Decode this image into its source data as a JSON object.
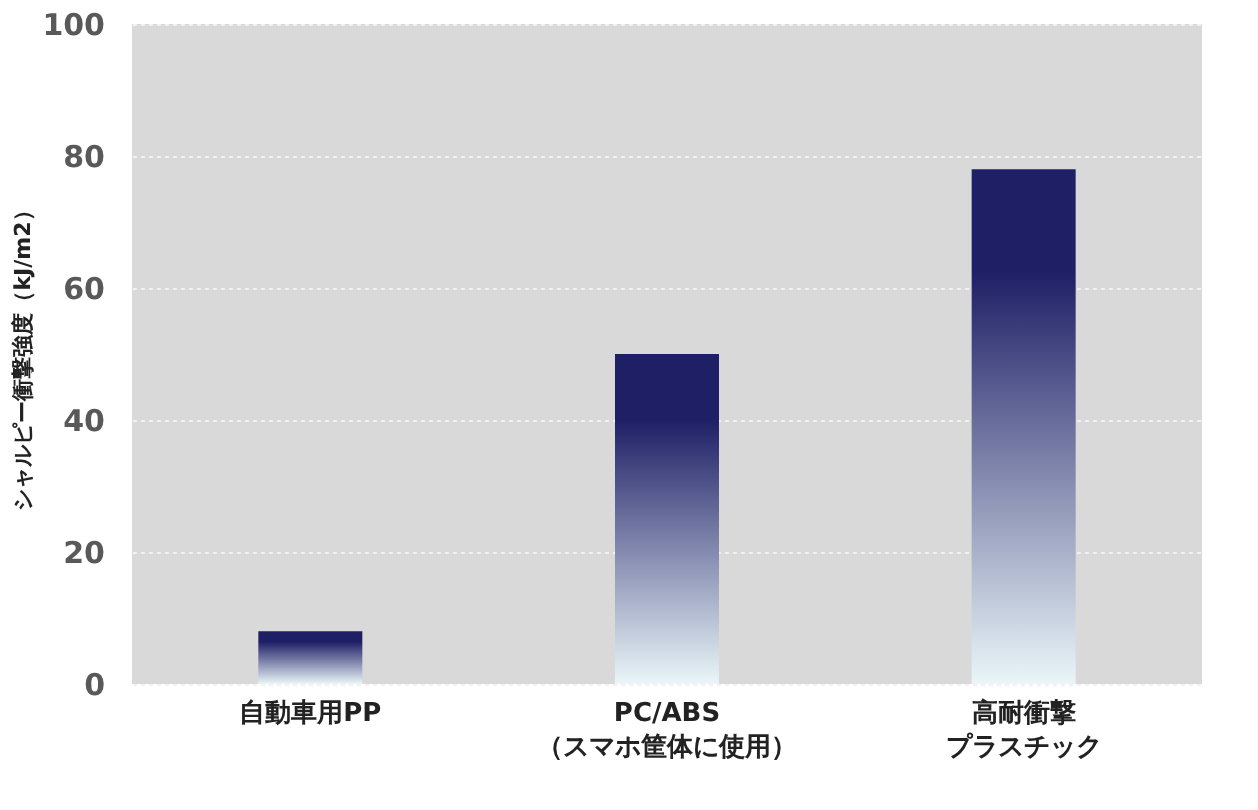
{
  "chart_data": {
    "type": "bar",
    "ylabel": "シャルピー衝撃強度（kJ/m2）",
    "categories": [
      "自動車用PP",
      "PC/ABS（スマホ筐体に使用）",
      "高耐衝撃プラスチック"
    ],
    "values": [
      8,
      50,
      78
    ],
    "color": "#1f1f66",
    "ylim": [
      0,
      100
    ],
    "yticks": [
      0,
      20,
      40,
      60,
      80,
      100
    ],
    "grid": "y"
  }
}
